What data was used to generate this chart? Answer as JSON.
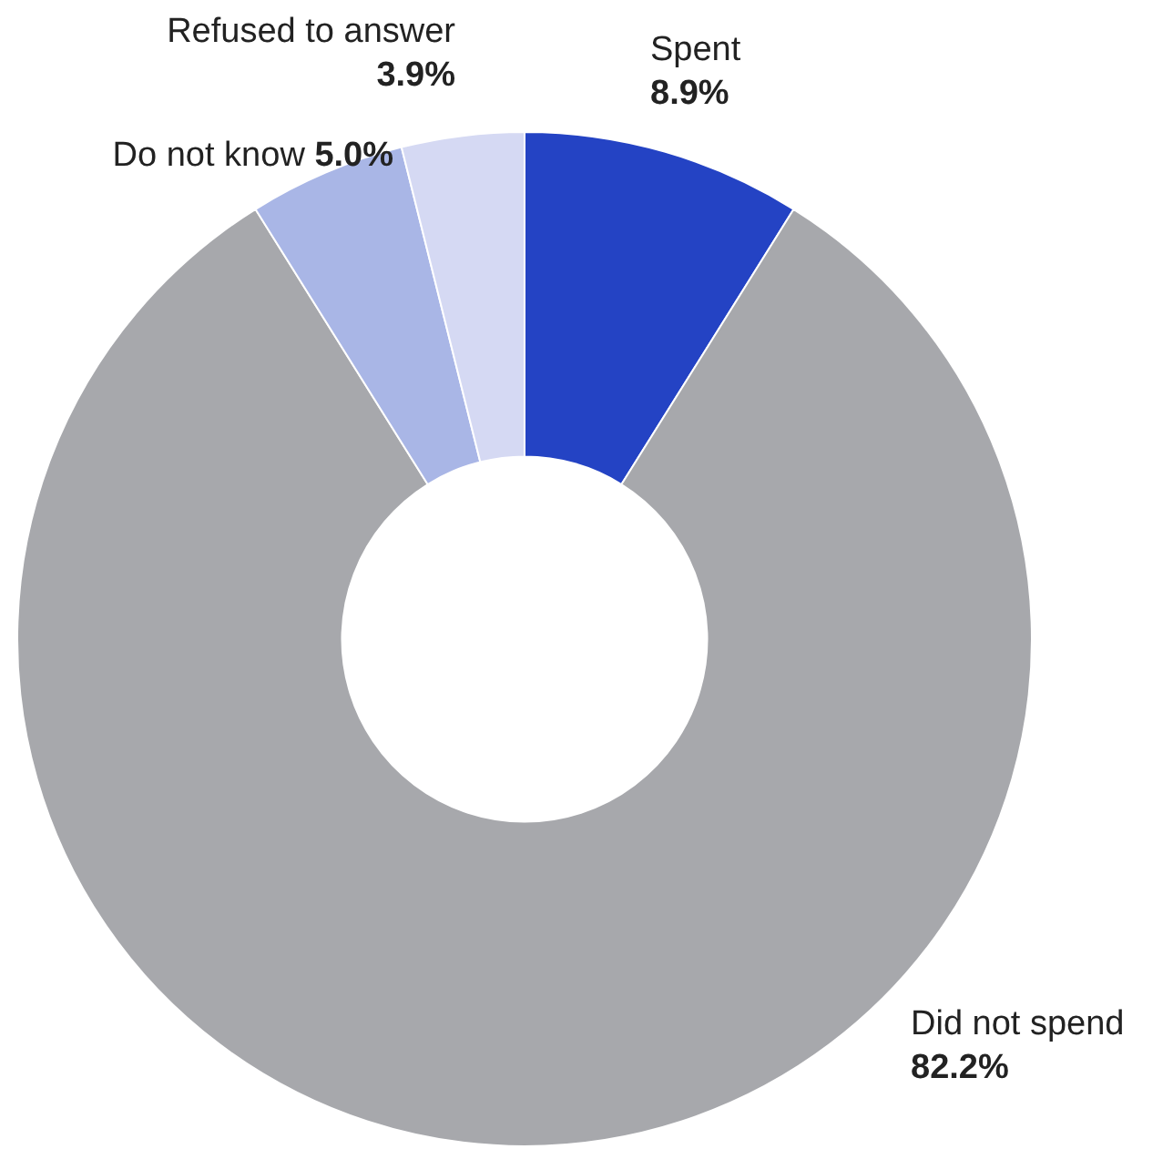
{
  "chart_data": {
    "type": "donut",
    "categories": [
      "Spent",
      "Did not spend",
      "Do not know",
      "Refused to answer"
    ],
    "values": [
      8.9,
      82.2,
      5.0,
      3.9
    ],
    "colors": [
      "#2443c4",
      "#a7a8ac",
      "#a9b6e6",
      "#d5d9f3"
    ],
    "value_labels": [
      "8.9%",
      "82.2%",
      "5.0%",
      "3.9%"
    ],
    "legend": false
  }
}
